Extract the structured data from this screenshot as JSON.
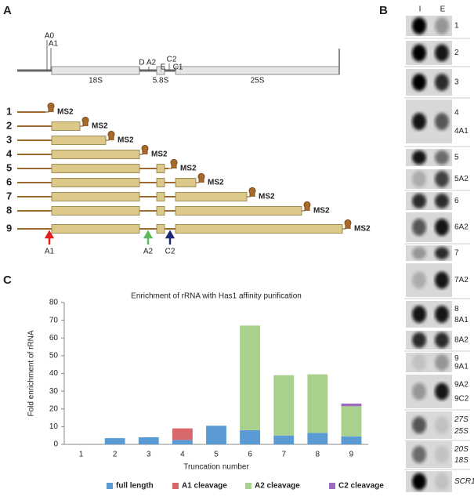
{
  "panels": {
    "a": "A",
    "b": "B",
    "c": "C"
  },
  "diagram": {
    "sites": [
      "A0",
      "A1",
      "D",
      "A2",
      "E",
      "C2",
      "C1"
    ],
    "regions": [
      "18S",
      "5.8S",
      "25S"
    ],
    "constructs": [
      "1",
      "2",
      "3",
      "4",
      "5",
      "6",
      "7",
      "8",
      "9"
    ],
    "tag": "MS2",
    "cleavage_arrows": [
      "A1",
      "A2",
      "C2"
    ]
  },
  "blot": {
    "columns": [
      "I",
      "E"
    ],
    "rows": [
      [
        "1"
      ],
      [
        "2"
      ],
      [
        "3"
      ],
      [
        "4",
        "4A1"
      ],
      [
        "5"
      ],
      [
        "5A2"
      ],
      [
        "6"
      ],
      [
        "6A2"
      ],
      [
        "7"
      ],
      [
        "7A2"
      ],
      [
        "8",
        "8A1"
      ],
      [
        "8A2"
      ],
      [
        "9",
        "9A1"
      ],
      [
        "9A2",
        "9C2"
      ],
      [
        "27S",
        "25S"
      ],
      [
        "20S",
        "18S"
      ],
      [
        "SCR1"
      ]
    ]
  },
  "chart_data": {
    "type": "stacked-bar",
    "title": "Enrichment of rRNA with Has1 affinity purification",
    "x_label": "Truncation number",
    "y_label": "Fold enrichment of rRNA",
    "categories": [
      "1",
      "2",
      "3",
      "4",
      "5",
      "6",
      "7",
      "8",
      "9"
    ],
    "series": [
      {
        "name": "full length",
        "color": "#5b9bd5",
        "values": [
          0,
          3.5,
          4,
          2.5,
          10.5,
          8,
          5,
          6.5,
          4.5
        ]
      },
      {
        "name": "A1 cleavage",
        "color": "#d9686b",
        "values": [
          0,
          0,
          0,
          6.5,
          0,
          0,
          0,
          0,
          0
        ]
      },
      {
        "name": "A2 cleavage",
        "color": "#a9d18e",
        "values": [
          0,
          0,
          0,
          0,
          0,
          59,
          34,
          33,
          17
        ]
      },
      {
        "name": "C2 cleavage",
        "color": "#9b6bbf",
        "values": [
          0,
          0,
          0,
          0,
          0,
          0,
          0,
          0,
          1.5
        ]
      }
    ],
    "ylim": [
      0,
      80
    ],
    "yticks": [
      0,
      10,
      20,
      30,
      40,
      50,
      60,
      70,
      80
    ],
    "legend": "bottom"
  }
}
